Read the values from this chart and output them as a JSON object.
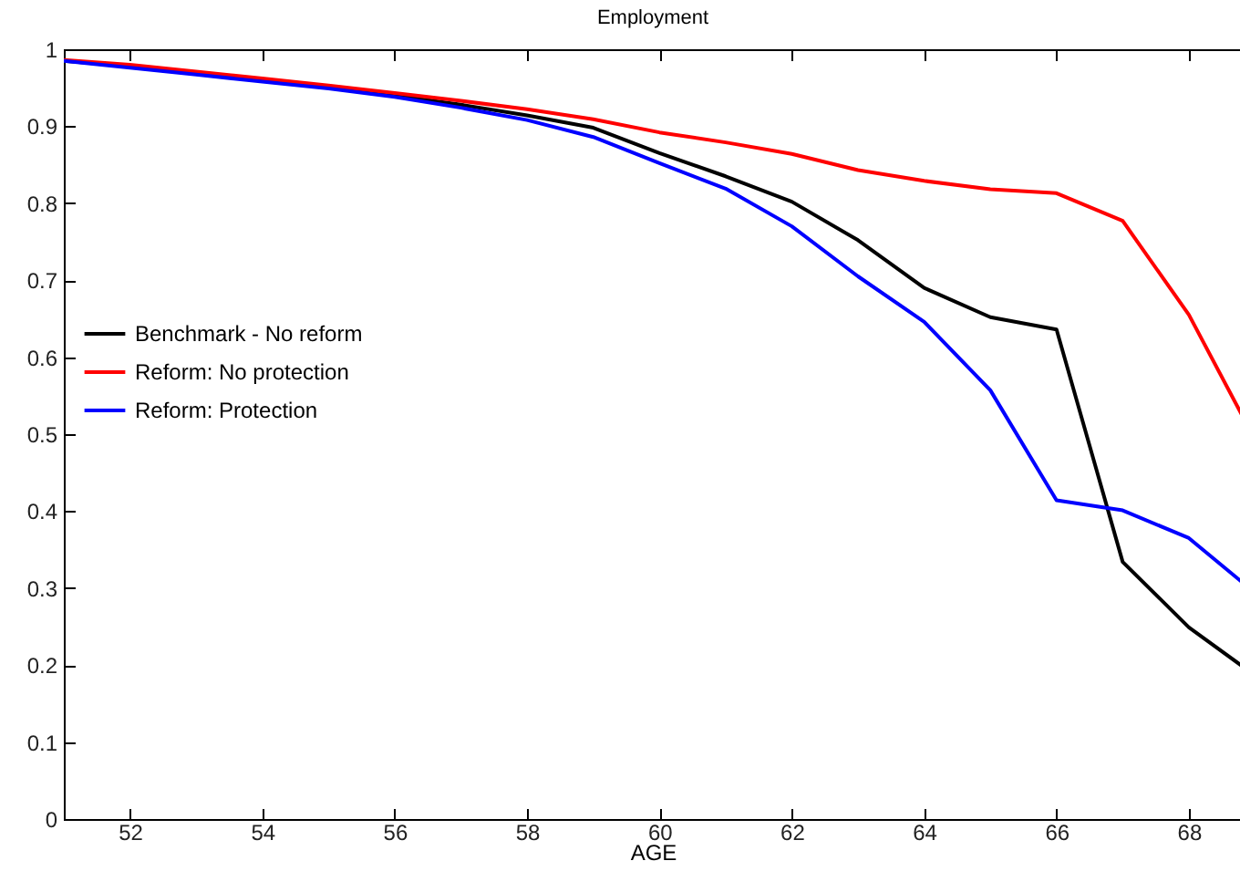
{
  "chart_data": {
    "type": "line",
    "title": "Employment",
    "xlabel": "AGE",
    "x": [
      51,
      52,
      53,
      54,
      55,
      56,
      57,
      58,
      59,
      60,
      61,
      62,
      63,
      64,
      65,
      66,
      67,
      68,
      68.8
    ],
    "series": [
      {
        "name": "Benchmark - No reform",
        "color": "#000000",
        "values": [
          0.985,
          0.978,
          0.968,
          0.96,
          0.951,
          0.94,
          0.928,
          0.914,
          0.898,
          0.865,
          0.835,
          0.802,
          0.752,
          0.69,
          0.652,
          0.636,
          0.334,
          0.249,
          0.199
        ]
      },
      {
        "name": "Reform: No protection",
        "color": "#ff0000",
        "values": [
          0.986,
          0.98,
          0.971,
          0.962,
          0.953,
          0.943,
          0.933,
          0.922,
          0.909,
          0.892,
          0.879,
          0.864,
          0.843,
          0.829,
          0.818,
          0.813,
          0.777,
          0.655,
          0.525
        ]
      },
      {
        "name": "Reform: Protection",
        "color": "#0000ff",
        "values": [
          0.985,
          0.976,
          0.967,
          0.958,
          0.949,
          0.938,
          0.924,
          0.908,
          0.886,
          0.852,
          0.819,
          0.77,
          0.705,
          0.646,
          0.557,
          0.414,
          0.401,
          0.365,
          0.308
        ]
      }
    ],
    "xlim": [
      51,
      68.8
    ],
    "xticks": [
      52,
      54,
      56,
      58,
      60,
      62,
      64,
      66,
      68
    ],
    "ylim": [
      0,
      1
    ],
    "yticks": [
      0,
      0.1,
      0.2,
      0.3,
      0.4,
      0.5,
      0.6,
      0.7,
      0.8,
      0.9,
      1
    ],
    "legend": "left",
    "grid": false
  }
}
